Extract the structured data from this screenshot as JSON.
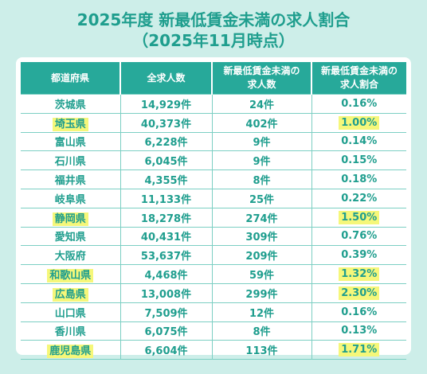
{
  "title_line1": "2025年度 新最低賃金未満の求人割合",
  "title_line2": "（2025年11月時点）",
  "headers": {
    "prefecture": "都道府県",
    "total": "全求人数",
    "below_min_1": "新最低賃金未満の",
    "below_min_2": "求人数",
    "ratio_1": "新最低賃金未満の",
    "ratio_2": "求人割合"
  },
  "highlight_color": "#f5f77a",
  "rows": [
    {
      "prefecture": "茨城県",
      "total": "14,929件",
      "below": "24件",
      "ratio": "0.16%",
      "highlight": false
    },
    {
      "prefecture": "埼玉県",
      "total": "40,373件",
      "below": "402件",
      "ratio": "1.00%",
      "highlight": true
    },
    {
      "prefecture": "富山県",
      "total": "6,228件",
      "below": "9件",
      "ratio": "0.14%",
      "highlight": false
    },
    {
      "prefecture": "石川県",
      "total": "6,045件",
      "below": "9件",
      "ratio": "0.15%",
      "highlight": false
    },
    {
      "prefecture": "福井県",
      "total": "4,355件",
      "below": "8件",
      "ratio": "0.18%",
      "highlight": false
    },
    {
      "prefecture": "岐阜県",
      "total": "11,133件",
      "below": "25件",
      "ratio": "0.22%",
      "highlight": false
    },
    {
      "prefecture": "静岡県",
      "total": "18,278件",
      "below": "274件",
      "ratio": "1.50%",
      "highlight": true
    },
    {
      "prefecture": "愛知県",
      "total": "40,431件",
      "below": "309件",
      "ratio": "0.76%",
      "highlight": false
    },
    {
      "prefecture": "大阪府",
      "total": "53,637件",
      "below": "209件",
      "ratio": "0.39%",
      "highlight": false
    },
    {
      "prefecture": "和歌山県",
      "total": "4,468件",
      "below": "59件",
      "ratio": "1.32%",
      "highlight": true
    },
    {
      "prefecture": "広島県",
      "total": "13,008件",
      "below": "299件",
      "ratio": "2.30%",
      "highlight": true
    },
    {
      "prefecture": "山口県",
      "total": "7,509件",
      "below": "12件",
      "ratio": "0.16%",
      "highlight": false
    },
    {
      "prefecture": "香川県",
      "total": "6,075件",
      "below": "8件",
      "ratio": "0.13%",
      "highlight": false
    },
    {
      "prefecture": "鹿児島県",
      "total": "6,604件",
      "below": "113件",
      "ratio": "1.71%",
      "highlight": true
    }
  ]
}
